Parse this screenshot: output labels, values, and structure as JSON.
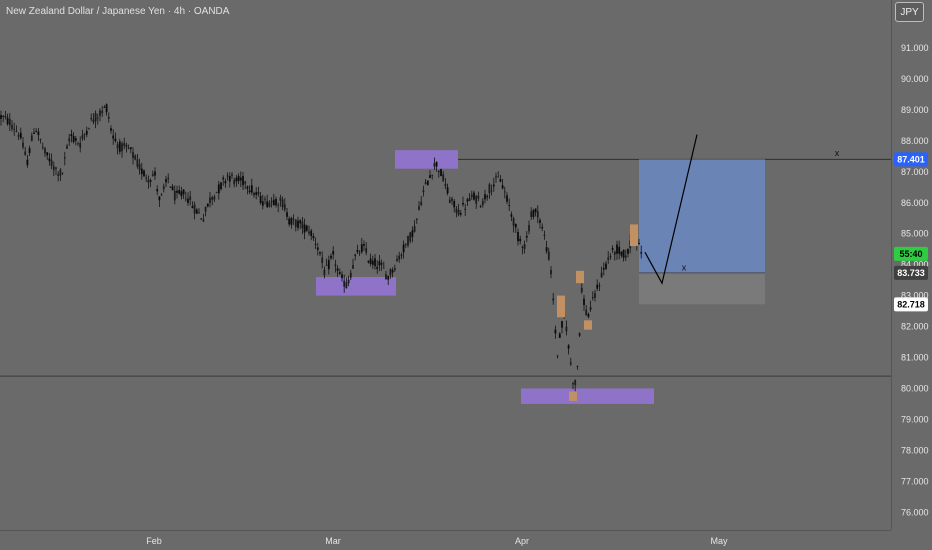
{
  "header": {
    "title": "New Zealand Dollar / Japanese Yen · 4h · OANDA",
    "currency": "JPY"
  },
  "colors": {
    "background": "#6a6a6a",
    "candle": "#111111",
    "zone_purple": "#8e73c9",
    "zone_orange": "#c29163",
    "target_box": "#6b84b6",
    "stop_box": "#7a7a7a",
    "label_blue": "#2962ff",
    "label_green": "#2ecc40",
    "label_white": "#ffffff"
  },
  "chart_data": {
    "type": "candlestick",
    "symbol": "NZDJPY",
    "interval": "4h",
    "source": "OANDA",
    "y_axis": {
      "ticks": [
        "91.000",
        "90.000",
        "89.000",
        "88.000",
        "87.000",
        "86.000",
        "85.000",
        "84.000",
        "83.000",
        "82.000",
        "81.000",
        "80.000",
        "79.000",
        "78.000",
        "77.000",
        "76.000"
      ],
      "range": [
        75.5,
        91.6
      ]
    },
    "x_axis": {
      "ticks": [
        "Feb",
        "Mar",
        "Apr",
        "May"
      ]
    },
    "price_labels": [
      {
        "text": "87.401",
        "value": 87.401,
        "style": "blue"
      },
      {
        "text": "55:40",
        "value": 84.35,
        "style": "green"
      },
      {
        "text": "83.733",
        "value": 83.733,
        "style": "dark"
      },
      {
        "text": "82.718",
        "value": 82.718,
        "style": "white"
      }
    ],
    "horizontal_lines": [
      87.401,
      80.4
    ],
    "price_path": [
      [
        0,
        88.8
      ],
      [
        10,
        88.6
      ],
      [
        20,
        88.2
      ],
      [
        27,
        87.3
      ],
      [
        35,
        88.5
      ],
      [
        45,
        87.6
      ],
      [
        55,
        87.1
      ],
      [
        62,
        86.9
      ],
      [
        70,
        88.2
      ],
      [
        80,
        87.9
      ],
      [
        90,
        88.6
      ],
      [
        100,
        88.9
      ],
      [
        107,
        89.1
      ],
      [
        112,
        88.2
      ],
      [
        120,
        87.8
      ],
      [
        130,
        87.7
      ],
      [
        140,
        87.1
      ],
      [
        148,
        86.8
      ],
      [
        155,
        86.9
      ],
      [
        160,
        86.0
      ],
      [
        168,
        86.8
      ],
      [
        175,
        86.2
      ],
      [
        185,
        86.3
      ],
      [
        195,
        85.8
      ],
      [
        203,
        85.5
      ],
      [
        210,
        86.1
      ],
      [
        220,
        86.5
      ],
      [
        228,
        86.9
      ],
      [
        235,
        86.7
      ],
      [
        245,
        86.7
      ],
      [
        255,
        86.3
      ],
      [
        265,
        86.0
      ],
      [
        275,
        86.1
      ],
      [
        283,
        86.0
      ],
      [
        290,
        85.4
      ],
      [
        300,
        85.3
      ],
      [
        310,
        85.1
      ],
      [
        318,
        84.6
      ],
      [
        325,
        83.7
      ],
      [
        333,
        84.3
      ],
      [
        340,
        83.6
      ],
      [
        347,
        83.3
      ],
      [
        355,
        84.2
      ],
      [
        363,
        84.6
      ],
      [
        370,
        84.1
      ],
      [
        380,
        84.0
      ],
      [
        388,
        83.6
      ],
      [
        395,
        84.0
      ],
      [
        405,
        84.6
      ],
      [
        415,
        85.2
      ],
      [
        422,
        86.2
      ],
      [
        430,
        86.9
      ],
      [
        436,
        87.3
      ],
      [
        443,
        86.8
      ],
      [
        450,
        86.1
      ],
      [
        458,
        85.7
      ],
      [
        465,
        85.9
      ],
      [
        473,
        86.2
      ],
      [
        482,
        86.0
      ],
      [
        490,
        86.5
      ],
      [
        500,
        86.8
      ],
      [
        506,
        86.2
      ],
      [
        512,
        85.6
      ],
      [
        518,
        84.9
      ],
      [
        525,
        84.6
      ],
      [
        532,
        85.7
      ],
      [
        538,
        85.7
      ],
      [
        545,
        84.8
      ],
      [
        550,
        84.1
      ],
      [
        553,
        83.0
      ],
      [
        557,
        81.0
      ],
      [
        561,
        81.9
      ],
      [
        565,
        82.4
      ],
      [
        569,
        81.2
      ],
      [
        573,
        80.3
      ],
      [
        576,
        80.1
      ],
      [
        579,
        81.5
      ],
      [
        582,
        83.2
      ],
      [
        587,
        82.3
      ],
      [
        592,
        82.7
      ],
      [
        598,
        83.3
      ],
      [
        603,
        83.8
      ],
      [
        610,
        84.3
      ],
      [
        617,
        84.5
      ],
      [
        623,
        84.3
      ],
      [
        628,
        84.4
      ],
      [
        634,
        85.0
      ],
      [
        638,
        84.6
      ],
      [
        642,
        84.4
      ]
    ],
    "zones": [
      {
        "kind": "supply",
        "price_range": [
          87.1,
          87.7
        ],
        "x_range": [
          395,
          458
        ]
      },
      {
        "kind": "demand",
        "price_range": [
          83.0,
          83.6
        ],
        "x_range": [
          316,
          396
        ]
      },
      {
        "kind": "demand",
        "price_range": [
          79.5,
          80.0
        ],
        "x_range": [
          521,
          654
        ]
      }
    ],
    "markers": [
      {
        "price_range": [
          84.6,
          85.3
        ],
        "x": 634
      },
      {
        "price_range": [
          83.4,
          83.8
        ],
        "x": 580
      },
      {
        "price_range": [
          82.3,
          83.0
        ],
        "x": 561
      },
      {
        "price_range": [
          81.9,
          82.2
        ],
        "x": 588
      },
      {
        "price_range": [
          79.6,
          79.9
        ],
        "x": 573
      }
    ],
    "position": {
      "target_range": [
        83.733,
        87.401
      ],
      "stop_range": [
        82.718,
        83.733
      ],
      "inner_range": [
        83.3,
        83.733
      ]
    },
    "projection": [
      [
        645,
        84.4
      ],
      [
        662,
        83.4
      ],
      [
        697,
        88.2
      ]
    ],
    "annotations": [
      {
        "text": "x",
        "price": 87.6,
        "x": 837
      },
      {
        "text": "x",
        "price": 83.9,
        "x": 684
      }
    ]
  }
}
